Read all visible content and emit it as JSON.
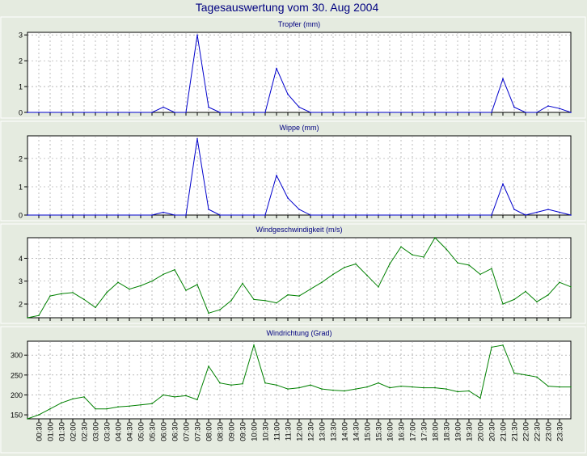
{
  "page_title": "Tagesauswertung vom 30. Aug 2004",
  "colors": {
    "background": "#e5ebe0",
    "plot_area": "#ffffff",
    "title": "#000080",
    "line_rain": "#0000cc",
    "line_wind": "#008000",
    "grid": "#909090"
  },
  "x_labels": [
    "00:30",
    "01:00",
    "01:30",
    "02:00",
    "02:30",
    "03:00",
    "03:30",
    "04:00",
    "04:30",
    "05:00",
    "05:30",
    "06:00",
    "06:30",
    "07:00",
    "07:30",
    "08:00",
    "08:30",
    "09:00",
    "09:30",
    "10:00",
    "10:30",
    "11:00",
    "11:30",
    "12:00",
    "12:30",
    "13:00",
    "13:30",
    "14:00",
    "14:30",
    "15:00",
    "15:30",
    "16:00",
    "16:30",
    "17:00",
    "17:30",
    "18:00",
    "18:30",
    "19:00",
    "19:30",
    "20:00",
    "20:30",
    "21:00",
    "21:30",
    "22:00",
    "22:30",
    "23:00",
    "23:30"
  ],
  "chart_data": [
    {
      "type": "line",
      "title": "Tropfer (mm)",
      "grid": true,
      "ylim": [
        0,
        3.1
      ],
      "yticks": [
        0,
        1,
        2,
        3
      ],
      "color": "#0000cc",
      "x": [
        "00:00",
        "00:30",
        "01:00",
        "01:30",
        "02:00",
        "02:30",
        "03:00",
        "03:30",
        "04:00",
        "04:30",
        "05:00",
        "05:30",
        "06:00",
        "06:30",
        "07:00",
        "07:30",
        "08:00",
        "08:30",
        "09:00",
        "09:30",
        "10:00",
        "10:30",
        "11:00",
        "11:30",
        "12:00",
        "12:30",
        "13:00",
        "13:30",
        "14:00",
        "14:30",
        "15:00",
        "15:30",
        "16:00",
        "16:30",
        "17:00",
        "17:30",
        "18:00",
        "18:30",
        "19:00",
        "19:30",
        "20:00",
        "20:30",
        "21:00",
        "21:30",
        "22:00",
        "22:30",
        "23:00",
        "23:30",
        "24:00"
      ],
      "values": [
        0,
        0,
        0,
        0,
        0,
        0,
        0,
        0,
        0,
        0,
        0,
        0,
        0.2,
        0,
        0,
        3.0,
        0.2,
        0,
        0,
        0,
        0,
        0,
        1.7,
        0.7,
        0.2,
        0,
        0,
        0,
        0,
        0,
        0,
        0,
        0,
        0,
        0,
        0,
        0,
        0,
        0,
        0,
        0,
        0,
        1.3,
        0.2,
        0,
        0,
        0.25,
        0.15,
        0
      ]
    },
    {
      "type": "line",
      "title": "Wippe (mm)",
      "grid": true,
      "ylim": [
        0,
        2.8
      ],
      "yticks": [
        0,
        1,
        2
      ],
      "color": "#0000cc",
      "x": [
        "00:00",
        "00:30",
        "01:00",
        "01:30",
        "02:00",
        "02:30",
        "03:00",
        "03:30",
        "04:00",
        "04:30",
        "05:00",
        "05:30",
        "06:00",
        "06:30",
        "07:00",
        "07:30",
        "08:00",
        "08:30",
        "09:00",
        "09:30",
        "10:00",
        "10:30",
        "11:00",
        "11:30",
        "12:00",
        "12:30",
        "13:00",
        "13:30",
        "14:00",
        "14:30",
        "15:00",
        "15:30",
        "16:00",
        "16:30",
        "17:00",
        "17:30",
        "18:00",
        "18:30",
        "19:00",
        "19:30",
        "20:00",
        "20:30",
        "21:00",
        "21:30",
        "22:00",
        "22:30",
        "23:00",
        "23:30",
        "24:00"
      ],
      "values": [
        0,
        0,
        0,
        0,
        0,
        0,
        0,
        0,
        0,
        0,
        0,
        0,
        0.1,
        0,
        0,
        2.7,
        0.2,
        0,
        0,
        0,
        0,
        0,
        1.4,
        0.6,
        0.2,
        0,
        0,
        0,
        0,
        0,
        0,
        0,
        0,
        0,
        0,
        0,
        0,
        0,
        0,
        0,
        0,
        0,
        1.1,
        0.2,
        0,
        0.1,
        0.2,
        0.1,
        0
      ]
    },
    {
      "type": "line",
      "title": "Windgeschwindigkeit (m/s)",
      "grid": true,
      "ylim": [
        1.4,
        4.9
      ],
      "yticks": [
        2,
        3,
        4
      ],
      "color": "#008000",
      "x": [
        "00:00",
        "00:30",
        "01:00",
        "01:30",
        "02:00",
        "02:30",
        "03:00",
        "03:30",
        "04:00",
        "04:30",
        "05:00",
        "05:30",
        "06:00",
        "06:30",
        "07:00",
        "07:30",
        "08:00",
        "08:30",
        "09:00",
        "09:30",
        "10:00",
        "10:30",
        "11:00",
        "11:30",
        "12:00",
        "12:30",
        "13:00",
        "13:30",
        "14:00",
        "14:30",
        "15:00",
        "15:30",
        "16:00",
        "16:30",
        "17:00",
        "17:30",
        "18:00",
        "18:30",
        "19:00",
        "19:30",
        "20:00",
        "20:30",
        "21:00",
        "21:30",
        "22:00",
        "22:30",
        "23:00",
        "23:30",
        "24:00"
      ],
      "values": [
        1.4,
        1.5,
        2.35,
        2.45,
        2.5,
        2.2,
        1.85,
        2.5,
        2.95,
        2.65,
        2.8,
        3.0,
        3.3,
        3.5,
        2.6,
        2.85,
        1.6,
        1.75,
        2.15,
        2.9,
        2.2,
        2.15,
        2.05,
        2.4,
        2.35,
        2.65,
        2.95,
        3.3,
        3.6,
        3.75,
        3.25,
        2.75,
        3.75,
        4.5,
        4.15,
        4.05,
        4.9,
        4.4,
        3.8,
        3.7,
        3.3,
        3.55,
        2.0,
        2.2,
        2.55,
        2.1,
        2.4,
        2.95,
        2.75
      ]
    },
    {
      "type": "line",
      "title": "Windrichtung (Grad)",
      "grid": true,
      "ylim": [
        140,
        335
      ],
      "yticks": [
        150,
        200,
        250,
        300
      ],
      "color": "#008000",
      "x": [
        "00:00",
        "00:30",
        "01:00",
        "01:30",
        "02:00",
        "02:30",
        "03:00",
        "03:30",
        "04:00",
        "04:30",
        "05:00",
        "05:30",
        "06:00",
        "06:30",
        "07:00",
        "07:30",
        "08:00",
        "08:30",
        "09:00",
        "09:30",
        "10:00",
        "10:30",
        "11:00",
        "11:30",
        "12:00",
        "12:30",
        "13:00",
        "13:30",
        "14:00",
        "14:30",
        "15:00",
        "15:30",
        "16:00",
        "16:30",
        "17:00",
        "17:30",
        "18:00",
        "18:30",
        "19:00",
        "19:30",
        "20:00",
        "20:30",
        "21:00",
        "21:30",
        "22:00",
        "22:30",
        "23:00",
        "23:30",
        "24:00"
      ],
      "values": [
        140,
        150,
        165,
        180,
        190,
        195,
        165,
        165,
        170,
        172,
        175,
        178,
        200,
        195,
        198,
        188,
        272,
        230,
        225,
        228,
        325,
        230,
        225,
        215,
        218,
        225,
        215,
        212,
        210,
        215,
        220,
        230,
        218,
        222,
        220,
        218,
        218,
        215,
        208,
        210,
        192,
        320,
        325,
        255,
        250,
        245,
        222,
        220,
        220
      ]
    }
  ]
}
